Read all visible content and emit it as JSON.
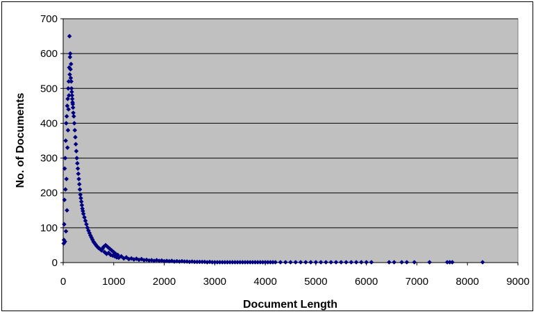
{
  "colors": {
    "plot_background": "#c0c0c0",
    "gridline": "#000000",
    "marker": "#000080",
    "frame": "#000000"
  },
  "chart_data": {
    "type": "scatter",
    "title": "",
    "xlabel": "Document Length",
    "ylabel": "No. of Documents",
    "xlim": [
      0,
      9000
    ],
    "ylim": [
      0,
      700
    ],
    "x_ticks": [
      "0",
      "1000",
      "2000",
      "3000",
      "4000",
      "5000",
      "6000",
      "7000",
      "8000",
      "9000"
    ],
    "y_ticks": [
      "0",
      "100",
      "200",
      "300",
      "400",
      "500",
      "600",
      "700"
    ],
    "grid": "horizontal",
    "legend": "none",
    "marker": "diamond",
    "series": [
      {
        "points": [
          [
            10,
            55
          ],
          [
            15,
            65
          ],
          [
            20,
            110
          ],
          [
            25,
            180
          ],
          [
            30,
            270
          ],
          [
            35,
            60
          ],
          [
            40,
            300
          ],
          [
            45,
            210
          ],
          [
            50,
            350
          ],
          [
            55,
            90
          ],
          [
            60,
            400
          ],
          [
            65,
            240
          ],
          [
            70,
            420
          ],
          [
            75,
            150
          ],
          [
            80,
            450
          ],
          [
            85,
            330
          ],
          [
            90,
            470
          ],
          [
            95,
            380
          ],
          [
            100,
            500
          ],
          [
            105,
            440
          ],
          [
            110,
            520
          ],
          [
            115,
            480
          ],
          [
            120,
            560
          ],
          [
            125,
            650
          ],
          [
            130,
            540
          ],
          [
            135,
            590
          ],
          [
            140,
            600
          ],
          [
            145,
            555
          ],
          [
            150,
            530
          ],
          [
            155,
            570
          ],
          [
            160,
            520
          ],
          [
            165,
            500
          ],
          [
            170,
            490
          ],
          [
            175,
            480
          ],
          [
            180,
            470
          ],
          [
            185,
            460
          ],
          [
            190,
            455
          ],
          [
            195,
            445
          ],
          [
            200,
            430
          ],
          [
            210,
            420
          ],
          [
            220,
            400
          ],
          [
            230,
            380
          ],
          [
            240,
            360
          ],
          [
            250,
            340
          ],
          [
            260,
            320
          ],
          [
            270,
            300
          ],
          [
            280,
            285
          ],
          [
            290,
            270
          ],
          [
            300,
            255
          ],
          [
            310,
            240
          ],
          [
            320,
            225
          ],
          [
            330,
            210
          ],
          [
            340,
            195
          ],
          [
            350,
            185
          ],
          [
            360,
            175
          ],
          [
            370,
            165
          ],
          [
            380,
            155
          ],
          [
            390,
            148
          ],
          [
            400,
            140
          ],
          [
            420,
            130
          ],
          [
            440,
            120
          ],
          [
            460,
            110
          ],
          [
            480,
            100
          ],
          [
            500,
            92
          ],
          [
            520,
            85
          ],
          [
            540,
            78
          ],
          [
            560,
            72
          ],
          [
            580,
            66
          ],
          [
            600,
            60
          ],
          [
            620,
            56
          ],
          [
            640,
            52
          ],
          [
            660,
            48
          ],
          [
            680,
            45
          ],
          [
            700,
            42
          ],
          [
            720,
            40
          ],
          [
            740,
            38
          ],
          [
            760,
            35
          ],
          [
            780,
            40
          ],
          [
            800,
            45
          ],
          [
            820,
            30
          ],
          [
            840,
            50
          ],
          [
            860,
            25
          ],
          [
            880,
            45
          ],
          [
            900,
            28
          ],
          [
            920,
            40
          ],
          [
            940,
            22
          ],
          [
            960,
            35
          ],
          [
            980,
            20
          ],
          [
            1000,
            30
          ],
          [
            1020,
            18
          ],
          [
            1040,
            25
          ],
          [
            1060,
            15
          ],
          [
            1080,
            22
          ],
          [
            1100,
            14
          ],
          [
            1150,
            18
          ],
          [
            1200,
            12
          ],
          [
            1250,
            15
          ],
          [
            1300,
            10
          ],
          [
            1350,
            12
          ],
          [
            1400,
            9
          ],
          [
            1450,
            11
          ],
          [
            1500,
            8
          ],
          [
            1550,
            10
          ],
          [
            1600,
            7
          ],
          [
            1650,
            8
          ],
          [
            1700,
            6
          ],
          [
            1750,
            7
          ],
          [
            1800,
            5
          ],
          [
            1850,
            7
          ],
          [
            1900,
            5
          ],
          [
            1950,
            6
          ],
          [
            2000,
            4
          ],
          [
            2050,
            5
          ],
          [
            2100,
            4
          ],
          [
            2150,
            5
          ],
          [
            2200,
            3
          ],
          [
            2250,
            4
          ],
          [
            2300,
            3
          ],
          [
            2350,
            4
          ],
          [
            2400,
            3
          ],
          [
            2450,
            3
          ],
          [
            2500,
            2
          ],
          [
            2550,
            3
          ],
          [
            2600,
            2
          ],
          [
            2650,
            2
          ],
          [
            2700,
            2
          ],
          [
            2750,
            2
          ],
          [
            2800,
            2
          ],
          [
            2850,
            1
          ],
          [
            2900,
            2
          ],
          [
            2950,
            1
          ],
          [
            3000,
            1
          ],
          [
            3050,
            1
          ],
          [
            3100,
            1
          ],
          [
            3150,
            1
          ],
          [
            3200,
            1
          ],
          [
            3250,
            1
          ],
          [
            3300,
            1
          ],
          [
            3350,
            1
          ],
          [
            3400,
            1
          ],
          [
            3450,
            1
          ],
          [
            3500,
            1
          ],
          [
            3550,
            1
          ],
          [
            3600,
            1
          ],
          [
            3650,
            1
          ],
          [
            3700,
            1
          ],
          [
            3750,
            1
          ],
          [
            3800,
            1
          ],
          [
            3850,
            1
          ],
          [
            3900,
            1
          ],
          [
            3950,
            1
          ],
          [
            4000,
            1
          ],
          [
            4050,
            1
          ],
          [
            4100,
            1
          ],
          [
            4150,
            1
          ],
          [
            4200,
            1
          ],
          [
            4300,
            1
          ],
          [
            4400,
            1
          ],
          [
            4500,
            1
          ],
          [
            4600,
            1
          ],
          [
            4700,
            1
          ],
          [
            4800,
            1
          ],
          [
            4900,
            1
          ],
          [
            5000,
            1
          ],
          [
            5100,
            1
          ],
          [
            5200,
            1
          ],
          [
            5300,
            1
          ],
          [
            5400,
            1
          ],
          [
            5500,
            1
          ],
          [
            5600,
            1
          ],
          [
            5700,
            1
          ],
          [
            5800,
            1
          ],
          [
            5900,
            1
          ],
          [
            6000,
            1
          ],
          [
            6100,
            1
          ],
          [
            6450,
            1
          ],
          [
            6550,
            1
          ],
          [
            6700,
            1
          ],
          [
            6800,
            1
          ],
          [
            6950,
            1
          ],
          [
            7250,
            1
          ],
          [
            7600,
            1
          ],
          [
            7650,
            1
          ],
          [
            7700,
            1
          ],
          [
            8300,
            1
          ]
        ]
      }
    ]
  }
}
